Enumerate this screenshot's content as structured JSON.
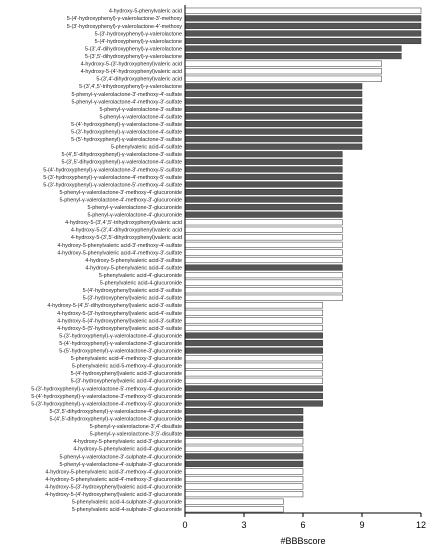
{
  "chart_data": {
    "type": "bar",
    "orientation": "horizontal",
    "xlabel": "#BBBscore",
    "xlim": [
      0,
      12
    ],
    "xticks": [
      0,
      3,
      6,
      9,
      12
    ],
    "grid": false,
    "colors": {
      "filled": "#555555",
      "open": "#ffffff",
      "edge": "#333333"
    },
    "categories": [
      "4-hydroxy-5-phenylvaleric acid",
      "5-(4'-hydroxyphenyl)-γ-valerolactone-3'-methoxy",
      "5-(3'-hydroxyphenyl)-γ-valerolactone-4'-methoxy",
      "5-(3'-hydroxyphenyl)-γ-valerolactone",
      "5-(4'-hydroxyphenyl)-γ-valerolactone",
      "5-(3',4'-dihydroxyphenyl)-γ-valerolactone",
      "5-(3',5'-dihydroxyphenyl)-γ-valerolactone",
      "4-hydroxy-5-(3'-hydroxyphenyl)valeric acid",
      "4-hydroxy-5-(4'-hydroxyphenyl)valeric acid",
      "5-(3',4'-dihydroxyphenyl)valeric acid",
      "5-(3',4',5'-trihydroxyphenyl)-γ-valerolactone",
      "5-phenyl-γ-valerolactone-3'-methoxy-4'-sulfate",
      "5-phenyl-γ-valerolactone-4'-methoxy-3'-sulfate",
      "5-phenyl-γ-valerolactone-3'-sulfate",
      "5-phenyl-γ-valerolactone-4'-sulfate",
      "5-(4'-hydroxyphenyl)-γ-valerolactone-3'-sulfate",
      "5-(3'-hydroxyphenyl)-γ-valerolactone-4'-sulfate",
      "5-(5'-hydroxyphenyl)-γ-valerolactone-3'-sulfate",
      "5-phenylvaleric acid-4'-sulfate",
      "5-(4',5'-dihydroxyphenyl)-γ-valerolactone-3'-sulfate",
      "5-(3',5'-dihydroxyphenyl)-γ-valerolactone-4'-sulfate",
      "5-(4'-hydroxyphenyl)-γ-valerolactone-3'-methoxy-5'-sulfate",
      "5-(3'-hydroxyphenyl)-γ-valerolactone-4'-methoxy-5'-sulfate",
      "5-(3'-hydroxyphenyl)-γ-valerolactone-5'-methoxy-4'-sulfate",
      "5-phenyl-γ-valerolactone-3'-methoxy-4'-glucuronide",
      "5-phenyl-γ-valerolactone-4'-methoxy-3'-glucuronide",
      "5-phenyl-γ-valerolactone-3'-glucuronide",
      "5-phenyl-γ-valerolactone-4'-glucuronide",
      "4-hydroxy-5-(3',4',5'-trihydroxyphenyl)valeric acid",
      "4-hydroxy-5-(3',4'-dihydroxyphenyl)valeric acid",
      "4-hydroxy-5-(3',5'-dihydroxyphenyl)valeric acid",
      "4-hydroxy-5-phenylvaleric acid-3'-methoxy-4'-sulfate",
      "4-hydroxy-5-phenylvaleric acid-4'-methoxy-3'-sulfate",
      "4-hydroxy-5-phenylvaleric acid-3'-sulfate",
      "4-hydroxy-5-phenylvaleric acid-4'-sulfate",
      "5-phenylvaleric acid-4'-glucuronide",
      "5-phenylvaleric acid-4-glucuronide",
      "5-(4'-hydroxyphenyl)valeric acid-3'-sulfate",
      "5-(3'-hydroxyphenyl)valeric acid-4'-sulfate",
      "4-hydroxy-5-(4',5'-dihydroxyphenyl)valeric acid-3'-sulfate",
      "4-hydroxy-5-(3'-hydroxyphenyl)valeric acid-4'-sulfate",
      "4-hydroxy-5-(4'-hydroxyphenyl)valeric acid-3'-sulfate",
      "4-hydroxy-5-(5'-hydroxyphenyl)valeric acid-3'-sulfate",
      "5-(3'-hydroxyphenyl)-γ-valerolactone-4'-glucuronide",
      "5-(4'-hydroxyphenyl)-γ-valerolactone-3'-glucuronide",
      "5-(5'-hydroxyphenyl)-γ-valerolactone-3'-glucuronide",
      "5-phenylvaleric acid-4'-methoxy-3'-glucuronide",
      "5-phenylvaleric acid-5-methoxy-4'-glucuronide",
      "5-(4'-hydroxyphenyl)valeric acid-3'-glucuronide",
      "5-(3'-hydroxyphenyl)valeric acid-4'-glucuronide",
      "5-(3'-hydroxyphenyl)-γ-valerolactone-5'-methoxy-4'-glucuronide",
      "5-(4'-hydroxyphenyl)-γ-valerolactone-3'-methoxy-5'-glucuronide",
      "5-(3'-hydroxyphenyl)-γ-valerolactone-4'-methoxy-5'-glucuronide",
      "5-(3',5'-dihydroxyphenyl)-γ-valerolactone-4'-glucuronide",
      "5-(4',5'-dihydroxyphenyl)-γ-valerolactone-3'-glucuronide",
      "5-phenyl-γ-valerolactone-3',4'-disulfate",
      "5-phenyl-γ-valerolactone-3',5'-disulfate",
      "4-hydroxy-5-phenylvaleric acid-3'-glucuronide",
      "4-hydroxy-5-phenylvaleric acid-4'-glucuronide",
      "5-phenyl-γ-valerolactone-3'-sulphate-4'-glucuronide",
      "5-phenyl-γ-valerolactone-4'-sulphate-3'-glucuronide",
      "4-hydroxy-5-phenylvaleric acid-3'-methoxy-4'-glucuronide",
      "4-hydroxy-5-phenylvaleric acid-4'-methoxy-3'-glucuronide",
      "4-hydroxy-5-(3'-hydroxyphenyl)valeric acid-4'-glucuronide",
      "4-hydroxy-5-(4'-hydroxyphenyl)valeric acid-3'-glucuronide",
      "5-phenylvaleric acid-4-sulphate-3'-glucuronide",
      "5-phenylvaleric acid-4-sulphate-3'-glucuronide"
    ],
    "values": [
      12,
      12,
      12,
      12,
      12,
      11,
      11,
      10,
      10,
      10,
      9,
      9,
      9,
      9,
      9,
      9,
      9,
      9,
      9,
      8,
      8,
      8,
      8,
      8,
      8,
      8,
      8,
      8,
      8,
      8,
      8,
      8,
      8,
      8,
      8,
      8,
      8,
      8,
      8,
      7,
      7,
      7,
      7,
      7,
      7,
      7,
      7,
      7,
      7,
      7,
      7,
      7,
      7,
      6,
      6,
      6,
      6,
      6,
      6,
      6,
      6,
      6,
      6,
      6,
      6,
      5,
      5
    ],
    "filled": [
      false,
      true,
      true,
      true,
      true,
      true,
      true,
      false,
      false,
      false,
      true,
      true,
      true,
      true,
      true,
      true,
      true,
      true,
      true,
      true,
      true,
      true,
      true,
      true,
      true,
      true,
      true,
      true,
      false,
      false,
      false,
      false,
      false,
      false,
      true,
      false,
      false,
      false,
      false,
      false,
      false,
      false,
      false,
      true,
      true,
      true,
      false,
      false,
      false,
      false,
      true,
      true,
      true,
      true,
      true,
      true,
      true,
      false,
      false,
      true,
      true,
      false,
      false,
      false,
      false,
      false,
      false
    ]
  }
}
